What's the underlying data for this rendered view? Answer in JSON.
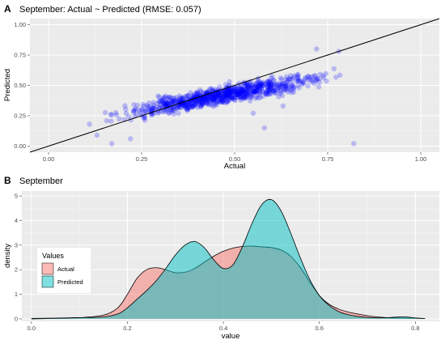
{
  "chart_data": [
    {
      "panel_label": "A",
      "type": "scatter",
      "title": "September: Actual ~ Predicted (RMSE: 0.057)",
      "xlabel": "Actual",
      "ylabel": "Predicted",
      "xlim": [
        -0.05,
        1.05
      ],
      "ylim": [
        -0.05,
        1.05
      ],
      "x_ticks": [
        "0.00",
        "0.25",
        "0.50",
        "0.75",
        "1.00"
      ],
      "y_ticks": [
        "0.00",
        "0.25",
        "0.50",
        "0.75",
        "1.00"
      ],
      "point_color": "#0000ff",
      "reference_line": {
        "slope": 1,
        "intercept": 0,
        "color": "#000000"
      },
      "grid": true,
      "point_cloud": {
        "x_range": [
          0.12,
          0.82
        ],
        "trend": {
          "slope": 0.55,
          "intercept": 0.16
        },
        "outliers": [
          [
            0.11,
            0.18
          ],
          [
            0.13,
            0.09
          ],
          [
            0.17,
            0.02
          ],
          [
            0.22,
            0.06
          ],
          [
            0.58,
            0.15
          ],
          [
            0.55,
            0.27
          ],
          [
            0.82,
            0.02
          ],
          [
            0.63,
            0.33
          ],
          [
            0.78,
            0.78
          ],
          [
            0.72,
            0.8
          ]
        ]
      }
    },
    {
      "panel_label": "B",
      "type": "area",
      "title": "September",
      "xlabel": "value",
      "ylabel": "density",
      "xlim": [
        -0.02,
        0.85
      ],
      "ylim": [
        -0.1,
        5.2
      ],
      "x_ticks": [
        "0.0",
        "0.2",
        "0.4",
        "0.6",
        "0.8"
      ],
      "y_ticks": [
        "0",
        "1",
        "2",
        "3",
        "4",
        "5"
      ],
      "legend": {
        "title": "Values",
        "position": "left"
      },
      "grid": true,
      "series": [
        {
          "name": "Actual",
          "color": "#f8766d",
          "x": [
            0.0,
            0.05,
            0.1,
            0.15,
            0.18,
            0.2,
            0.22,
            0.24,
            0.26,
            0.28,
            0.3,
            0.32,
            0.34,
            0.36,
            0.38,
            0.4,
            0.42,
            0.44,
            0.46,
            0.48,
            0.5,
            0.52,
            0.54,
            0.56,
            0.58,
            0.6,
            0.62,
            0.64,
            0.66,
            0.68,
            0.7,
            0.72,
            0.74,
            0.76,
            0.78,
            0.8,
            0.82
          ],
          "values": [
            0.0,
            0.02,
            0.05,
            0.15,
            0.45,
            1.0,
            1.65,
            2.0,
            2.08,
            2.0,
            1.88,
            1.9,
            2.05,
            2.3,
            2.55,
            2.75,
            2.88,
            2.95,
            2.96,
            2.93,
            2.9,
            2.8,
            2.55,
            2.1,
            1.5,
            0.95,
            0.6,
            0.4,
            0.28,
            0.2,
            0.13,
            0.08,
            0.05,
            0.04,
            0.03,
            0.03,
            0.01
          ]
        },
        {
          "name": "Predicted",
          "color": "#00bfc4",
          "x": [
            0.0,
            0.05,
            0.1,
            0.15,
            0.18,
            0.2,
            0.22,
            0.24,
            0.26,
            0.28,
            0.3,
            0.32,
            0.34,
            0.36,
            0.38,
            0.4,
            0.42,
            0.44,
            0.46,
            0.48,
            0.5,
            0.52,
            0.54,
            0.56,
            0.58,
            0.6,
            0.62,
            0.64,
            0.66,
            0.68,
            0.7,
            0.72,
            0.74,
            0.76,
            0.78,
            0.8,
            0.82
          ],
          "values": [
            0.02,
            0.03,
            0.05,
            0.08,
            0.2,
            0.45,
            0.8,
            1.15,
            1.55,
            2.05,
            2.6,
            3.0,
            3.15,
            2.9,
            2.4,
            2.05,
            2.2,
            2.95,
            3.9,
            4.65,
            4.85,
            4.4,
            3.5,
            2.5,
            1.6,
            0.95,
            0.55,
            0.3,
            0.17,
            0.1,
            0.06,
            0.04,
            0.05,
            0.07,
            0.08,
            0.04,
            0.01
          ]
        }
      ]
    }
  ]
}
